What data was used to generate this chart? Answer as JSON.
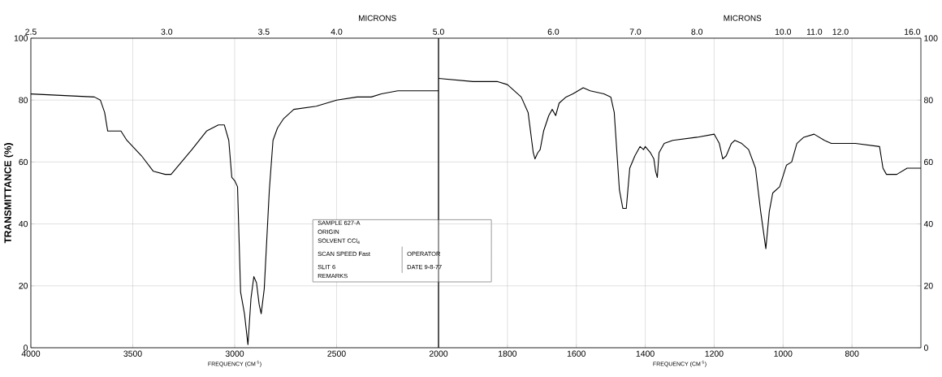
{
  "chart_data": [
    {
      "type": "line",
      "xlabel": "FREQUENCY (CM$^{-1}$)",
      "ylabel": "TRANSMITTANCE (%)",
      "x2label": "MICRONS",
      "annotations": [
        "SAMPLE 627-A",
        "ORIGIN",
        "SOLVENT CCl$_{4}$",
        "SCAN SPEED Fast",
        "OPERATOR",
        "SLIT 6",
        "DATE 9-8-77",
        "REMARKS",
        "2.5",
        "3.0",
        "3.5",
        "4.0",
        "5.0"
      ],
      "x": [
        4000,
        3688,
        3659,
        3638,
        3623,
        3558,
        3529,
        3457,
        3399,
        3341,
        3312,
        3210,
        3138,
        3080,
        3051,
        3029,
        3014,
        3000,
        2986,
        2971,
        2952,
        2935,
        2920,
        2906,
        2893,
        2880,
        2870,
        2855,
        2830,
        2812,
        2790,
        2760,
        2710,
        2600,
        2500,
        2400,
        2330,
        2280,
        2200,
        2000
      ],
      "series": [
        {
          "color": "#000000",
          "values": [
            82,
            81,
            80,
            76,
            70,
            70,
            67,
            62,
            57,
            56,
            56,
            64,
            70,
            72,
            72,
            67,
            55,
            54,
            52,
            18,
            11,
            1,
            16,
            23,
            21,
            14,
            11,
            19,
            51,
            67,
            71,
            74,
            77,
            78,
            80,
            81,
            81,
            82,
            83,
            83
          ]
        }
      ],
      "xlim": [
        4000,
        2000
      ],
      "xticks": [
        4000,
        3500,
        3000,
        2500,
        2000
      ],
      "ylim": [
        0,
        100
      ],
      "yticks": [
        0,
        20,
        40,
        60,
        80,
        100
      ],
      "grid": true
    },
    {
      "type": "line",
      "xlabel": "FREQUENCY (CM$^{-1}$)",
      "x2label": "MICRONS",
      "annotations": [
        "6.0",
        "7.0",
        "8.0",
        "10.0",
        "11.0",
        "12.0",
        "16.0"
      ],
      "x": [
        2000,
        1900,
        1830,
        1800,
        1760,
        1740,
        1725,
        1720,
        1712,
        1705,
        1695,
        1680,
        1670,
        1660,
        1650,
        1630,
        1610,
        1580,
        1560,
        1520,
        1500,
        1490,
        1475,
        1465,
        1455,
        1445,
        1430,
        1415,
        1405,
        1400,
        1385,
        1375,
        1370,
        1365,
        1360,
        1345,
        1320,
        1250,
        1200,
        1185,
        1175,
        1165,
        1150,
        1140,
        1120,
        1100,
        1080,
        1065,
        1050,
        1040,
        1030,
        1010,
        990,
        975,
        960,
        940,
        910,
        880,
        860,
        840,
        790,
        720,
        710,
        700,
        670,
        640,
        600
      ],
      "series": [
        {
          "color": "#000000",
          "axis": "y2",
          "values": [
            87,
            86,
            86,
            85,
            81,
            76,
            63,
            61,
            63,
            64,
            70,
            75,
            77,
            75,
            79,
            81,
            82,
            84,
            83,
            82,
            81,
            76,
            51,
            45,
            45,
            58,
            62,
            65,
            64,
            65,
            63,
            61,
            57,
            55,
            63,
            66,
            67,
            68,
            69,
            66,
            61,
            62,
            66,
            67,
            66,
            64,
            58,
            44,
            32,
            44,
            50,
            52,
            59,
            60,
            66,
            68,
            69,
            67,
            66,
            66,
            66,
            65,
            58,
            56,
            56,
            58,
            58
          ]
        }
      ],
      "xlim": [
        2000,
        600
      ],
      "xticks": [
        1800,
        1600,
        1400,
        1200,
        1000,
        800
      ],
      "y2lim": [
        0,
        100
      ],
      "y2ticks": [
        0,
        20,
        40,
        60,
        80,
        100
      ],
      "grid": true
    }
  ]
}
